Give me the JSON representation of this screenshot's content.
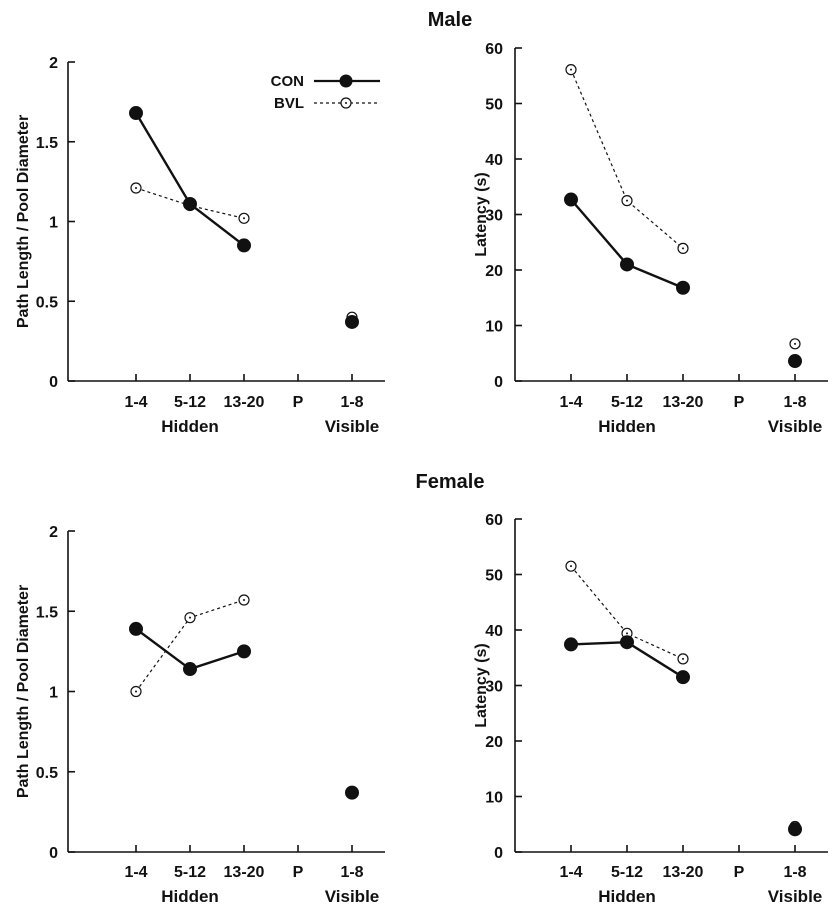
{
  "section_titles": [
    "Male",
    "Female"
  ],
  "legend": [
    {
      "label": "CON",
      "style": "solid-filled"
    },
    {
      "label": "BVL",
      "style": "dashed-open"
    }
  ],
  "colors": {
    "ink": "#111111",
    "background": "#ffffff"
  },
  "chart_data": [
    {
      "type": "line",
      "section": "Male",
      "ylabel": "Path Length / Pool Diameter",
      "ylim": [
        0,
        2
      ],
      "yticks": [
        0,
        0.5,
        1,
        1.5,
        2
      ],
      "ytick_labels": [
        "0",
        "0.5",
        "1",
        "1.5",
        "2"
      ],
      "categories": [
        "1-4",
        "5-12",
        "13-20",
        "P",
        "1-8"
      ],
      "groups": [
        {
          "label": "Hidden",
          "under": "5-12"
        },
        {
          "label": "Visible",
          "under": "1-8"
        }
      ],
      "series": [
        {
          "name": "CON",
          "values": [
            1.68,
            1.11,
            0.85,
            null,
            0.37
          ]
        },
        {
          "name": "BVL",
          "values": [
            1.21,
            1.1,
            1.02,
            null,
            0.4
          ]
        }
      ]
    },
    {
      "type": "line",
      "section": "Male",
      "ylabel": "Latency (s)",
      "ylim": [
        0,
        60
      ],
      "yticks": [
        0,
        10,
        20,
        30,
        40,
        50,
        60
      ],
      "ytick_labels": [
        "0",
        "10",
        "20",
        "30",
        "40",
        "50",
        "60"
      ],
      "categories": [
        "1-4",
        "5-12",
        "13-20",
        "P",
        "1-8"
      ],
      "groups": [
        {
          "label": "Hidden",
          "under": "5-12"
        },
        {
          "label": "Visible",
          "under": "1-8"
        }
      ],
      "series": [
        {
          "name": "CON",
          "values": [
            32.7,
            21.0,
            16.8,
            null,
            3.6
          ]
        },
        {
          "name": "BVL",
          "values": [
            56.1,
            32.5,
            23.9,
            null,
            6.7
          ]
        }
      ]
    },
    {
      "type": "line",
      "section": "Female",
      "ylabel": "Path Length / Pool Diameter",
      "ylim": [
        0,
        2
      ],
      "yticks": [
        0,
        0.5,
        1,
        1.5,
        2
      ],
      "ytick_labels": [
        "0",
        "0.5",
        "1",
        "1.5",
        "2"
      ],
      "categories": [
        "1-4",
        "5-12",
        "13-20",
        "P",
        "1-8"
      ],
      "groups": [
        {
          "label": "Hidden",
          "under": "5-12"
        },
        {
          "label": "Visible",
          "under": "1-8"
        }
      ],
      "series": [
        {
          "name": "CON",
          "values": [
            1.39,
            1.14,
            1.25,
            null,
            0.37
          ]
        },
        {
          "name": "BVL",
          "values": [
            1.0,
            1.46,
            1.57,
            null,
            0.37
          ]
        }
      ]
    },
    {
      "type": "line",
      "section": "Female",
      "ylabel": "Latency (s)",
      "ylim": [
        0,
        60
      ],
      "yticks": [
        0,
        10,
        20,
        30,
        40,
        50,
        60
      ],
      "ytick_labels": [
        "0",
        "10",
        "20",
        "30",
        "40",
        "50",
        "60"
      ],
      "categories": [
        "1-4",
        "5-12",
        "13-20",
        "P",
        "1-8"
      ],
      "groups": [
        {
          "label": "Hidden",
          "under": "5-12"
        },
        {
          "label": "Visible",
          "under": "1-8"
        }
      ],
      "series": [
        {
          "name": "CON",
          "values": [
            37.4,
            37.8,
            31.5,
            null,
            4.1
          ]
        },
        {
          "name": "BVL",
          "values": [
            51.5,
            39.4,
            34.8,
            null,
            4.6
          ]
        }
      ]
    }
  ]
}
